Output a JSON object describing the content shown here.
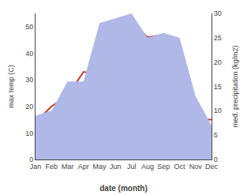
{
  "chart_data": {
    "type": "line",
    "categories": [
      "Jan",
      "Feb",
      "Mar",
      "Apr",
      "May",
      "Jun",
      "Jul",
      "Aug",
      "Sep",
      "Oct",
      "Nov",
      "Dec"
    ],
    "xlabel": "date (month)",
    "ylabel": "max temp (C)",
    "y2label": "med. precipitation (kg/m2)",
    "ylim": [
      0,
      55
    ],
    "yticks": [
      0,
      10,
      20,
      30,
      40,
      50
    ],
    "y2lim": [
      0,
      30
    ],
    "y2ticks": [
      0,
      5,
      10,
      15,
      20,
      25,
      30
    ],
    "grid": false,
    "series": [
      {
        "type": "area",
        "axis": "y2",
        "color": "#b0b8e8",
        "values": [
          9,
          10,
          16,
          16,
          28,
          29,
          30,
          25,
          26,
          25,
          13,
          7
        ]
      },
      {
        "type": "line",
        "color": "#c0392b",
        "values": [
          14,
          20,
          24,
          33,
          32,
          40,
          52,
          46,
          47,
          37,
          15,
          15
        ]
      }
    ]
  }
}
